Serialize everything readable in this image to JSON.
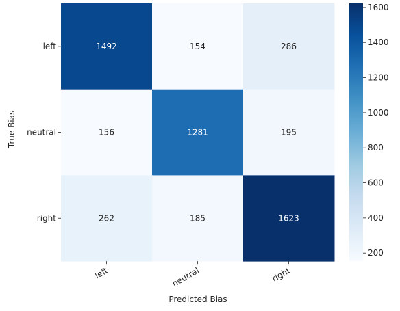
{
  "chart_data": {
    "type": "heatmap",
    "title": "",
    "xlabel": "Predicted Bias",
    "ylabel": "True Bias",
    "x_categories": [
      "left",
      "neutral",
      "right"
    ],
    "y_categories": [
      "left",
      "neutral",
      "right"
    ],
    "values": [
      [
        1492,
        154,
        286
      ],
      [
        156,
        1281,
        195
      ],
      [
        262,
        185,
        1623
      ]
    ],
    "colormap": "Blues",
    "colorbar": {
      "range": [
        154,
        1623
      ],
      "ticks": [
        200,
        400,
        600,
        800,
        1000,
        1200,
        1400,
        1600
      ]
    },
    "grid": false
  }
}
